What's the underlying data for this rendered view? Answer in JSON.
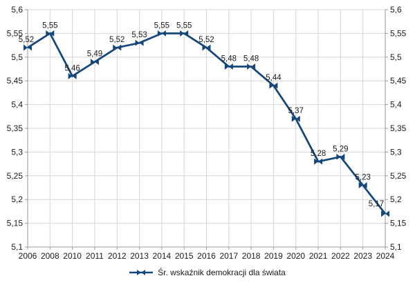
{
  "chart_data": {
    "type": "line",
    "title": "",
    "xlabel": "",
    "ylabel": "",
    "categories": [
      "2006",
      "2008",
      "2010",
      "2011",
      "2012",
      "2013",
      "2014",
      "2015",
      "2016",
      "2017",
      "2018",
      "2019",
      "2020",
      "2021",
      "2022",
      "2023",
      "2024"
    ],
    "series": [
      {
        "name": "Śr. wskaźnik demokracji dla świata",
        "values": [
          5.52,
          5.55,
          5.46,
          5.49,
          5.52,
          5.53,
          5.55,
          5.55,
          5.52,
          5.48,
          5.48,
          5.44,
          5.37,
          5.28,
          5.29,
          5.23,
          5.17
        ],
        "point_labels": [
          "5,52",
          "5,55",
          "5,46",
          "5,49",
          "5,52",
          "5,53",
          "5,55",
          "5,55",
          "5,52",
          "5,48",
          "5,48",
          "5,44",
          "5,37",
          "5,28",
          "5,29",
          "5,23",
          "5,17"
        ],
        "color": "#15477a",
        "marker": "double-arrow-bowtie"
      }
    ],
    "ylim": [
      5.1,
      5.6
    ],
    "ytick_values": [
      5.1,
      5.15,
      5.2,
      5.25,
      5.3,
      5.35,
      5.4,
      5.45,
      5.5,
      5.55,
      5.6
    ],
    "ytick_labels": [
      "5,1",
      "5,15",
      "5,2",
      "5,25",
      "5,3",
      "5,35",
      "5,4",
      "5,45",
      "5,5",
      "5,55",
      "5,6"
    ],
    "y_axis_sides": "both",
    "grid": true,
    "legend_position": "bottom",
    "colors": {
      "gridline": "#d6d6d6",
      "axis": "#9a9a9a",
      "text": "#1a1a1a",
      "background": "#ffffff"
    }
  },
  "legend": {
    "label": "Śr. wskaźnik demokracji dla świata"
  }
}
